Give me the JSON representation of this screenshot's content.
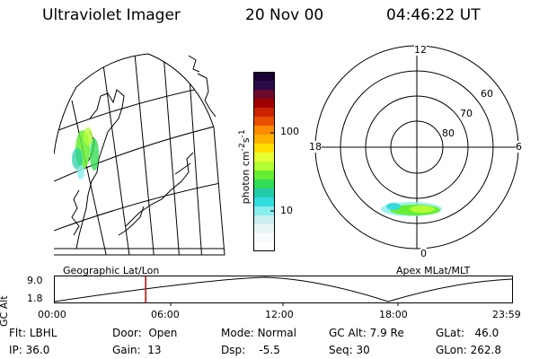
{
  "header": {
    "instrument": "Ultraviolet Imager",
    "date": "20 Nov 00",
    "time": "04:46:22 UT"
  },
  "colorbar": {
    "label_base": "photon cm",
    "label_exp1": "-2",
    "label_mid": "s",
    "label_exp2": "-1",
    "tick_100": "100",
    "tick_10": "10",
    "colors": [
      "#1a0033",
      "#2b0a4a",
      "#6a0a2a",
      "#a00000",
      "#cc2200",
      "#e65000",
      "#ff8c00",
      "#ffb300",
      "#ffe000",
      "#e6ff33",
      "#b3ff33",
      "#66ee33",
      "#33dd55",
      "#22ccaa",
      "#33dddd",
      "#88eeee",
      "#cceeee",
      "#eaf6f6",
      "#f7fbfb",
      "#ffffff"
    ]
  },
  "left_panel": {
    "caption": "Geographic Lat/Lon"
  },
  "polar": {
    "caption": "Apex MLat/MLT",
    "mlt": {
      "top": "12",
      "left": "18",
      "right": "6",
      "bottom": "0"
    },
    "mlat": {
      "r60": "60",
      "r70": "70",
      "r80": "80"
    }
  },
  "altitude_plot": {
    "y_label": "GC Alt",
    "y_max": "9.0",
    "y_min": "1.8",
    "x_ticks": [
      "00:00",
      "06:00",
      "12:00",
      "18:00",
      "23:59"
    ],
    "marker_time_hours": 4.77,
    "accent_color": "#cc0000"
  },
  "info": {
    "flt_label": "Flt:",
    "flt_value": "LBHL",
    "ip_label": "IP:",
    "ip_value": "36.0",
    "door_label": "Door:",
    "door_value": "Open",
    "gain_label": "Gain:",
    "gain_value": "13",
    "mode_label": "Mode:",
    "mode_value": "Normal",
    "dsp_label": "Dsp:",
    "dsp_value": "-5.5",
    "gcalt_label": "GC Alt:",
    "gcalt_value": "7.9 Re",
    "seq_label": "Seq:",
    "seq_value": "30",
    "glat_label": "GLat:",
    "glat_value": "46.0",
    "glon_label": "GLon:",
    "glon_value": "262.8"
  }
}
